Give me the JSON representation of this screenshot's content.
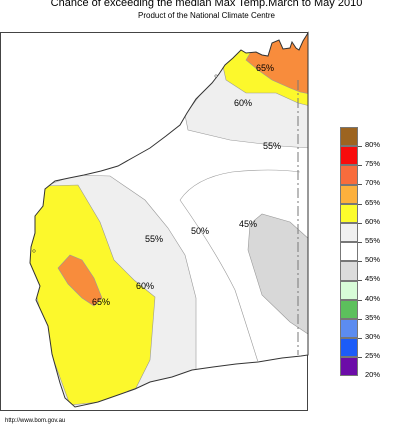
{
  "header": {
    "title": "Chance of exceeding the median Max Temp.March to May 2010",
    "subtitle": "Product of the National Climate Centre"
  },
  "map": {
    "contour_labels": [
      "65%",
      "60%",
      "55%",
      "50%",
      "45%",
      "55%",
      "60%",
      "65%"
    ],
    "colors": {
      "c65": "#f88c3c",
      "c60": "#fcf82c",
      "c55": "#efefef",
      "c45": "#d8d8d8",
      "c70": "#f07030"
    }
  },
  "legend": {
    "items": [
      {
        "label": "80%",
        "color": "#9c6420"
      },
      {
        "label": "75%",
        "color": "#f80c0c"
      },
      {
        "label": "70%",
        "color": "#f86c3c"
      },
      {
        "label": "65%",
        "color": "#fcb03c"
      },
      {
        "label": "60%",
        "color": "#fcfc2c"
      },
      {
        "label": "55%",
        "color": "#f0f0f0"
      },
      {
        "label": "50%",
        "color": "#ffffff"
      },
      {
        "label": "45%",
        "color": "#dcdcdc"
      },
      {
        "label": "40%",
        "color": "#d8fcd8"
      },
      {
        "label": "35%",
        "color": "#5cc05c"
      },
      {
        "label": "30%",
        "color": "#5c8cf0"
      },
      {
        "label": "25%",
        "color": "#1c5cf8"
      },
      {
        "label": "20%",
        "color": "#6c0ca8"
      }
    ]
  },
  "footer": {
    "url": "http://www.bom.gov.au"
  }
}
